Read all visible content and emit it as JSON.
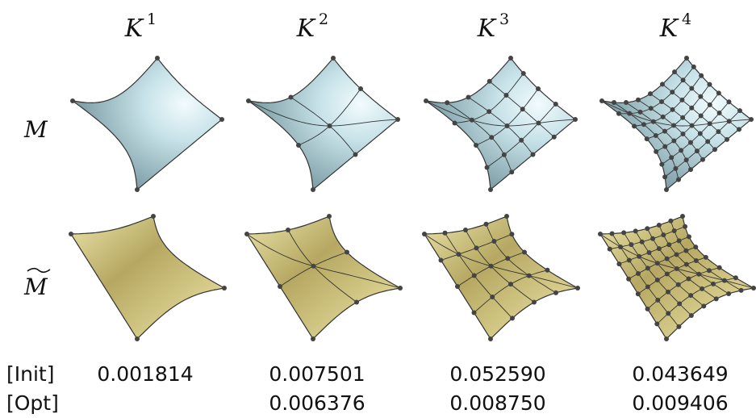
{
  "columns": [
    {
      "header": {
        "base": "K",
        "sup": "1"
      },
      "init": "0.001814"
    },
    {
      "header": {
        "base": "K",
        "sup": "2"
      },
      "init": "0.007501",
      "opt": "0.006376"
    },
    {
      "header": {
        "base": "K",
        "sup": "3"
      },
      "init": "0.052590",
      "opt": "0.008750"
    },
    {
      "header": {
        "base": "K",
        "sup": "4"
      },
      "init": "0.043649",
      "opt": "0.009406"
    }
  ],
  "rows": {
    "top": "M",
    "bottom": "M"
  },
  "labels": {
    "init": "[Init]",
    "opt": "[Opt]"
  }
}
